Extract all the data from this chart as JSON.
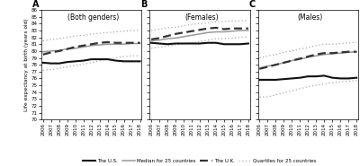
{
  "years": [
    2006,
    2007,
    2008,
    2009,
    2010,
    2011,
    2012,
    2013,
    2014,
    2015,
    2016,
    2017,
    2018
  ],
  "panels": [
    {
      "label": "A",
      "title": "(Both genders)",
      "us": [
        78.3,
        78.2,
        78.2,
        78.4,
        78.5,
        78.6,
        78.8,
        78.8,
        78.8,
        78.6,
        78.5,
        78.5,
        78.5
      ],
      "uk": [
        79.5,
        79.8,
        80.0,
        80.3,
        80.6,
        80.8,
        81.0,
        81.2,
        81.3,
        81.2,
        81.2,
        81.2,
        81.2
      ],
      "median": [
        79.9,
        80.0,
        80.1,
        80.3,
        80.4,
        80.6,
        80.8,
        80.9,
        81.0,
        81.0,
        81.0,
        81.1,
        81.1
      ],
      "q75": [
        81.5,
        81.7,
        81.8,
        82.0,
        82.2,
        82.3,
        82.5,
        82.6,
        82.7,
        82.8,
        82.9,
        83.0,
        83.0
      ],
      "q25": [
        77.2,
        77.3,
        77.5,
        77.7,
        77.9,
        78.1,
        78.3,
        78.6,
        78.8,
        79.0,
        79.2,
        79.3,
        79.3
      ],
      "ylim": [
        70,
        86
      ]
    },
    {
      "label": "B",
      "title": "(Females)",
      "us": [
        81.2,
        81.1,
        81.0,
        81.1,
        81.1,
        81.1,
        81.1,
        81.2,
        81.2,
        81.0,
        81.0,
        81.0,
        81.1
      ],
      "uk": [
        81.7,
        81.9,
        82.2,
        82.5,
        82.7,
        82.9,
        83.1,
        83.3,
        83.4,
        83.2,
        83.3,
        83.3,
        83.3
      ],
      "median": [
        81.5,
        81.6,
        81.8,
        81.9,
        82.1,
        82.3,
        82.5,
        82.7,
        82.8,
        82.8,
        82.9,
        83.0,
        83.0
      ],
      "q75": [
        83.0,
        83.2,
        83.4,
        83.5,
        83.7,
        83.9,
        84.0,
        84.1,
        84.3,
        84.3,
        84.4,
        84.4,
        84.5
      ],
      "q25": [
        80.4,
        80.6,
        80.7,
        80.9,
        81.1,
        81.2,
        81.4,
        81.6,
        81.8,
        81.8,
        81.9,
        82.0,
        82.1
      ],
      "ylim": [
        70,
        86
      ]
    },
    {
      "label": "C",
      "title": "(Males)",
      "us": [
        75.8,
        75.8,
        75.8,
        75.9,
        76.0,
        76.1,
        76.3,
        76.3,
        76.4,
        76.1,
        76.0,
        76.0,
        76.1
      ],
      "uk": [
        77.4,
        77.7,
        78.0,
        78.3,
        78.6,
        78.9,
        79.2,
        79.5,
        79.7,
        79.7,
        79.8,
        79.9,
        79.9
      ],
      "median": [
        77.5,
        77.8,
        78.0,
        78.3,
        78.6,
        78.8,
        79.1,
        79.3,
        79.5,
        79.6,
        79.7,
        79.8,
        79.9
      ],
      "q75": [
        79.0,
        79.3,
        79.5,
        79.8,
        80.0,
        80.3,
        80.5,
        80.8,
        81.0,
        81.0,
        81.1,
        81.2,
        81.3
      ],
      "q25": [
        73.3,
        73.3,
        73.6,
        73.9,
        74.2,
        74.5,
        74.8,
        75.0,
        75.2,
        75.4,
        75.5,
        75.6,
        75.7
      ],
      "ylim": [
        70,
        86
      ]
    }
  ],
  "ylabel": "Life expectancy at birth (years old)",
  "yticks": [
    70,
    71,
    72,
    73,
    74,
    75,
    76,
    77,
    78,
    79,
    80,
    81,
    82,
    83,
    84,
    85,
    86
  ]
}
